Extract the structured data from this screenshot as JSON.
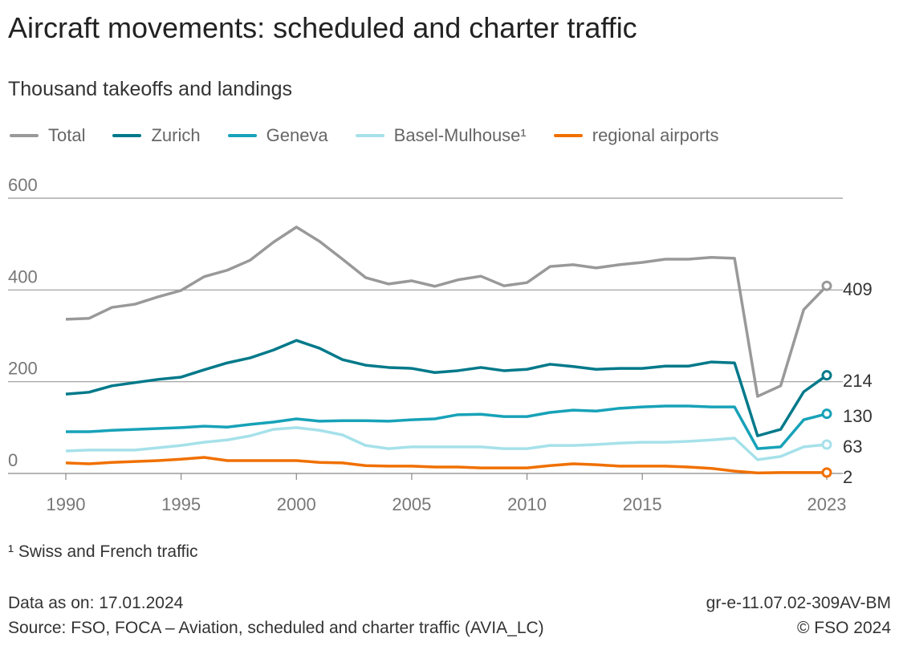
{
  "title": "Aircraft movements: scheduled and charter traffic",
  "subtitle": "Thousand takeoffs and landings",
  "footnote": "¹ Swiss and French traffic",
  "data_as_on": "Data as on: 17.01.2024",
  "source": "Source: FSO, FOCA – Aviation, scheduled and charter traffic (AVIA_LC)",
  "graphic_code": "gr-e-11.07.02-309AV-BM",
  "copyright": "© FSO 2024",
  "chart_data": {
    "type": "line",
    "title": "Aircraft movements: scheduled and charter traffic",
    "ylabel": "Thousand takeoffs and landings",
    "ylim": [
      0,
      600
    ],
    "yticks": [
      0,
      200,
      400,
      600
    ],
    "xlim": [
      1990,
      2023
    ],
    "xticks": [
      1990,
      1995,
      2000,
      2005,
      2010,
      2015,
      2023
    ],
    "grid": "horizontal",
    "legend": "top",
    "x": [
      1990,
      1991,
      1992,
      1993,
      1994,
      1995,
      1996,
      1997,
      1998,
      1999,
      2000,
      2001,
      2002,
      2003,
      2004,
      2005,
      2006,
      2007,
      2008,
      2009,
      2010,
      2011,
      2012,
      2013,
      2014,
      2015,
      2016,
      2017,
      2018,
      2019,
      2020,
      2021,
      2022,
      2023
    ],
    "series": [
      {
        "name": "Total",
        "color": "#999999",
        "end_label": "409",
        "values": [
          336,
          338,
          362,
          369,
          385,
          399,
          429,
          443,
          465,
          504,
          537,
          506,
          467,
          427,
          413,
          420,
          408,
          422,
          430,
          409,
          416,
          451,
          455,
          448,
          455,
          460,
          467,
          467,
          471,
          469,
          168,
          191,
          357,
          409
        ]
      },
      {
        "name": "Zurich",
        "color": "#00798a",
        "end_label": "214",
        "values": [
          173,
          177,
          191,
          198,
          205,
          210,
          226,
          241,
          252,
          269,
          290,
          273,
          248,
          236,
          231,
          229,
          220,
          224,
          231,
          224,
          227,
          238,
          233,
          227,
          229,
          229,
          234,
          234,
          243,
          241,
          82,
          96,
          178,
          214
        ]
      },
      {
        "name": "Geneva",
        "color": "#17a2b8",
        "end_label": "130",
        "values": [
          91,
          91,
          94,
          96,
          98,
          100,
          103,
          101,
          107,
          112,
          119,
          114,
          115,
          115,
          114,
          117,
          119,
          128,
          129,
          124,
          124,
          133,
          138,
          136,
          142,
          145,
          147,
          147,
          145,
          145,
          54,
          58,
          117,
          130
        ]
      },
      {
        "name": "Basel-Mulhouse¹",
        "color": "#a6e1ea",
        "end_label": "63",
        "values": [
          49,
          51,
          51,
          51,
          56,
          61,
          68,
          73,
          82,
          96,
          100,
          94,
          84,
          61,
          54,
          58,
          58,
          58,
          58,
          54,
          54,
          61,
          61,
          63,
          66,
          68,
          68,
          70,
          73,
          77,
          30,
          37,
          58,
          63
        ]
      },
      {
        "name": "regional airports",
        "color": "#f07000",
        "end_label": "2",
        "values": [
          23,
          21,
          24,
          26,
          28,
          31,
          35,
          28,
          28,
          28,
          28,
          24,
          23,
          17,
          16,
          16,
          14,
          14,
          12,
          12,
          12,
          17,
          21,
          19,
          16,
          16,
          16,
          14,
          11,
          5,
          1,
          2,
          2,
          2
        ]
      }
    ]
  }
}
